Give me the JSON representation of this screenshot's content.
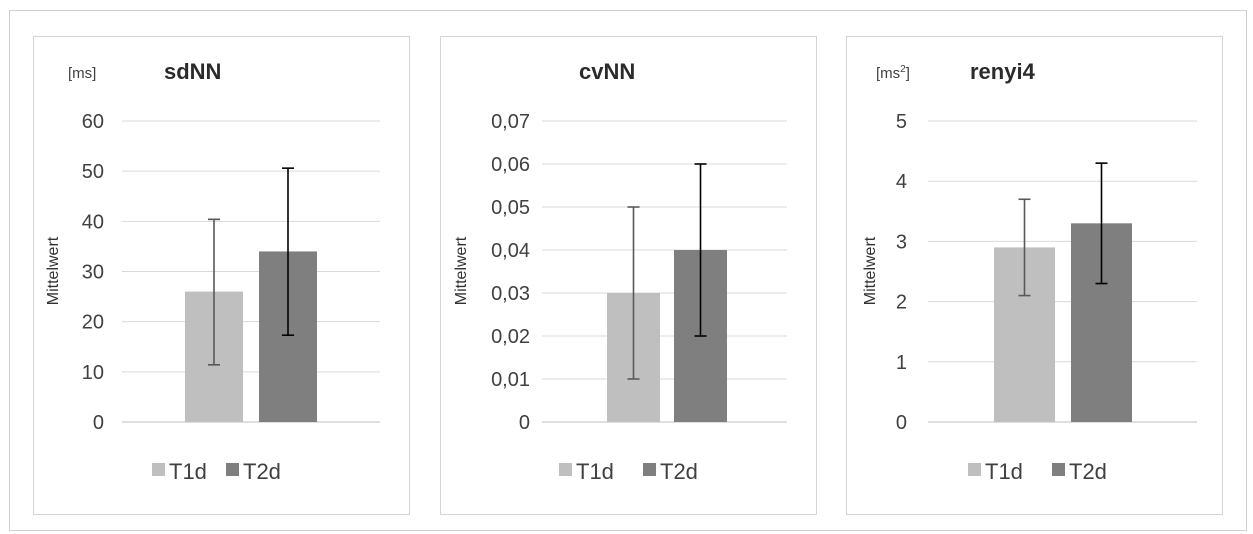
{
  "chart_data": [
    {
      "type": "bar",
      "title": "sdNN",
      "unit": "[ms]",
      "ylabel": "Mittelwert",
      "xlabel": "",
      "ylim": [
        0,
        60
      ],
      "yticks": [
        0,
        10,
        20,
        30,
        40,
        50,
        60
      ],
      "tick_labels": [
        "0",
        "10",
        "20",
        "30",
        "40",
        "50",
        "60"
      ],
      "grid": true,
      "legend_position": "bottom",
      "series": [
        {
          "name": "T1d",
          "values": [
            26
          ],
          "error_low": [
            11.4
          ],
          "error_high": [
            40.4
          ]
        },
        {
          "name": "T2d",
          "values": [
            34
          ],
          "error_low": [
            17.3
          ],
          "error_high": [
            50.6
          ]
        }
      ]
    },
    {
      "type": "bar",
      "title": "cvNN",
      "unit": "",
      "ylabel": "Mittelwert",
      "xlabel": "",
      "ylim": [
        0,
        0.07
      ],
      "yticks": [
        0,
        0.01,
        0.02,
        0.03,
        0.04,
        0.05,
        0.06,
        0.07
      ],
      "tick_labels": [
        "0",
        "0,01",
        "0,02",
        "0,03",
        "0,04",
        "0,05",
        "0,06",
        "0,07"
      ],
      "grid": true,
      "legend_position": "bottom",
      "series": [
        {
          "name": "T1d",
          "values": [
            0.03
          ],
          "error_low": [
            0.01
          ],
          "error_high": [
            0.05
          ]
        },
        {
          "name": "T2d",
          "values": [
            0.04
          ],
          "error_low": [
            0.02
          ],
          "error_high": [
            0.06
          ]
        }
      ]
    },
    {
      "type": "bar",
      "title": "renyi4",
      "unit": "[ms",
      "unit_sup": "2",
      "unit_end": "]",
      "ylabel": "Mittelwert",
      "xlabel": "",
      "ylim": [
        0,
        5
      ],
      "yticks": [
        0,
        1,
        2,
        3,
        4,
        5
      ],
      "tick_labels": [
        "0",
        "1",
        "2",
        "3",
        "4",
        "5"
      ],
      "grid": true,
      "legend_position": "bottom",
      "series": [
        {
          "name": "T1d",
          "values": [
            2.9
          ],
          "error_low": [
            2.1
          ],
          "error_high": [
            3.7
          ]
        },
        {
          "name": "T2d",
          "values": [
            3.3
          ],
          "error_low": [
            2.3
          ],
          "error_high": [
            4.3
          ]
        }
      ]
    }
  ],
  "colors": {
    "T1d": "#bfbfbf",
    "T2d": "#7f7f7f",
    "err_T1d": "#595959",
    "err_T2d": "#000000"
  }
}
